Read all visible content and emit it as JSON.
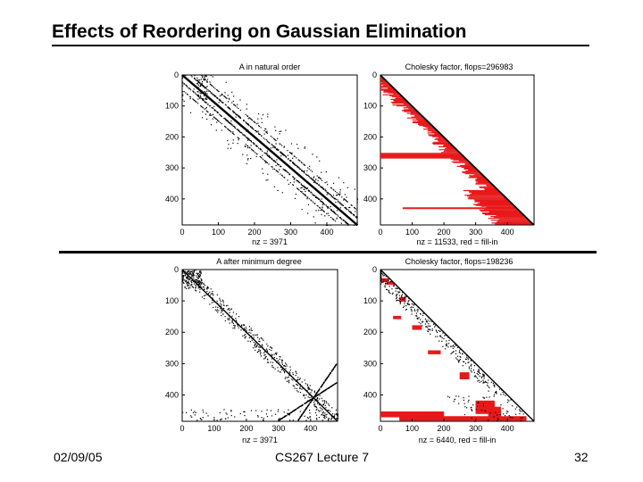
{
  "slide": {
    "title": "Effects of Reordering on Gaussian Elimination",
    "footer_date": "02/09/05",
    "footer_lecture": "CS267 Lecture 7",
    "footer_page": "32"
  },
  "panels": [
    {
      "id": "a-natural",
      "title": "A in natural order",
      "xlabel": "nz = 3971",
      "kind": "natural"
    },
    {
      "id": "chol-natural",
      "title": "Cholesky factor, flops=296983",
      "xlabel": "nz = 11533,   red = fill-in",
      "kind": "natural-chol"
    },
    {
      "id": "a-mindeg",
      "title": "A after minimum degree",
      "xlabel": "nz = 3971",
      "kind": "mindeg"
    },
    {
      "id": "chol-mindeg",
      "title": "Cholesky factor, flops=198236",
      "xlabel": "nz = 6440,   red = fill-in",
      "kind": "mindeg-chol"
    }
  ],
  "axes": {
    "range": [
      0,
      484
    ],
    "xticks": [
      "0",
      "100",
      "200",
      "300",
      "400"
    ],
    "yticks": [
      "0",
      "100",
      "200",
      "300",
      "400"
    ],
    "tick_values": [
      0,
      100,
      200,
      300,
      400
    ]
  },
  "colors": {
    "nonzero": "#000000",
    "fill_in": "#e8191b"
  }
}
